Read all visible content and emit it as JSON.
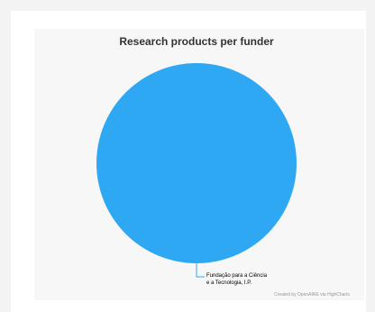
{
  "chart_data": {
    "type": "pie",
    "title": "Research products per funder",
    "slices": [
      {
        "name": "Fundação para a Ciência e a Tecnologia, I.P.",
        "name_lines": [
          "Fundação para a Ciência",
          "e a Tecnologia, I.P."
        ],
        "value": 100,
        "color": "#2ea8f3"
      }
    ],
    "credit": "Created by OpenAIRE via HighCharts"
  }
}
